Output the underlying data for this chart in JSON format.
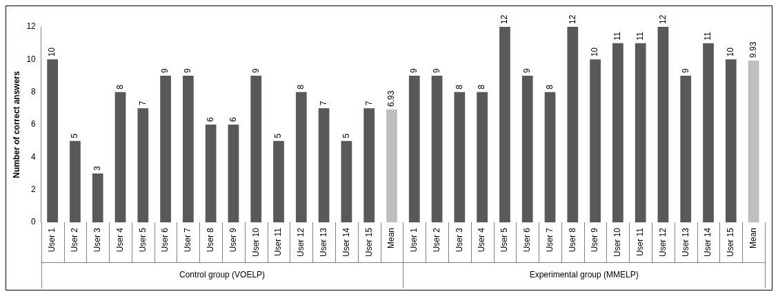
{
  "chart_data": {
    "type": "bar",
    "ylabel": "Number of correct answers",
    "categories": [
      "User 1",
      "User 2",
      "User 3",
      "User 4",
      "User 5",
      "User 6",
      "User 7",
      "User 8",
      "User 9",
      "User 10",
      "User 11",
      "User 12",
      "User 13",
      "User 14",
      "User 15",
      "Mean",
      "User 1",
      "User 2",
      "User 3",
      "User 4",
      "User 5",
      "User 6",
      "User 7",
      "User 8",
      "User 9",
      "User 10",
      "User 11",
      "User 12",
      "User 13",
      "User 14",
      "User 15",
      "Mean"
    ],
    "values": [
      10,
      5,
      3,
      8,
      7,
      9,
      9,
      6,
      6,
      9,
      5,
      8,
      7,
      5,
      7,
      6.93,
      9,
      9,
      8,
      8,
      12,
      9,
      8,
      12,
      10,
      11,
      11,
      12,
      9,
      11,
      10,
      9.93
    ],
    "colors": [
      "#595959",
      "#595959",
      "#595959",
      "#595959",
      "#595959",
      "#595959",
      "#595959",
      "#595959",
      "#595959",
      "#595959",
      "#595959",
      "#595959",
      "#595959",
      "#595959",
      "#595959",
      "#bfbfbf",
      "#595959",
      "#595959",
      "#595959",
      "#595959",
      "#595959",
      "#595959",
      "#595959",
      "#595959",
      "#595959",
      "#595959",
      "#595959",
      "#595959",
      "#595959",
      "#595959",
      "#595959",
      "#bfbfbf"
    ],
    "ylim": [
      0,
      12
    ],
    "yticks": [
      0,
      2,
      4,
      6,
      8,
      10,
      12
    ],
    "grid": false,
    "legend": false,
    "data_labels": true,
    "annotations": [
      "Control group (VOELP)",
      "Experimental group (MMELP)"
    ]
  }
}
